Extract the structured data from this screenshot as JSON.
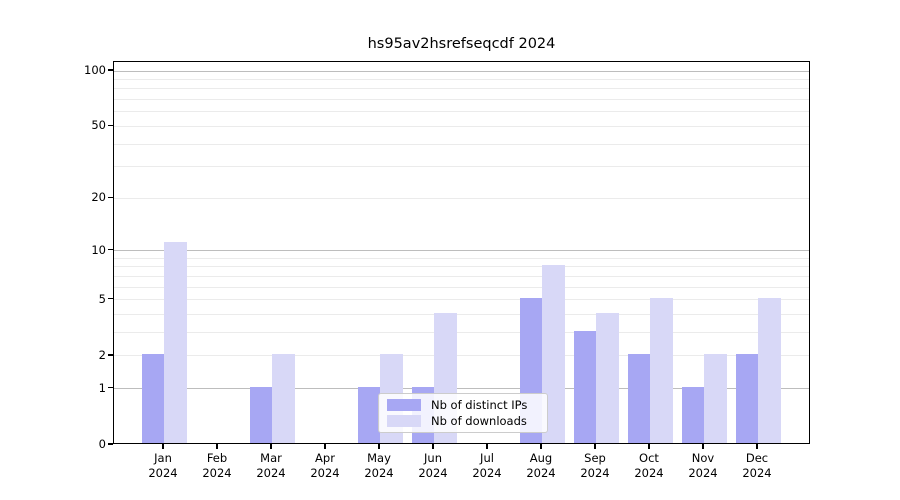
{
  "chart_data": {
    "type": "bar",
    "title": "hs95av2hsrefseqcdf 2024",
    "categories": [
      "Jan 2024",
      "Feb 2024",
      "Mar 2024",
      "Apr 2024",
      "May 2024",
      "Jun 2024",
      "Jul 2024",
      "Aug 2024",
      "Sep 2024",
      "Oct 2024",
      "Nov 2024",
      "Dec 2024"
    ],
    "series": [
      {
        "name": "Nb of distinct IPs",
        "color": "#a7a7f3",
        "values": [
          2,
          0,
          1,
          0,
          1,
          1,
          0,
          5,
          3,
          2,
          1,
          2
        ]
      },
      {
        "name": "Nb of downloads",
        "color": "#d8d8f7",
        "values": [
          11,
          0,
          2,
          0,
          2,
          4,
          0,
          8,
          4,
          5,
          2,
          5
        ]
      }
    ],
    "yscale": "log1p",
    "ylim": [
      0,
      112
    ],
    "yticks": [
      0,
      1,
      2,
      5,
      10,
      20,
      50,
      100
    ],
    "major_gridlines": [
      1,
      10,
      100
    ],
    "minor_gridlines": [
      2,
      3,
      4,
      5,
      6,
      7,
      8,
      9,
      20,
      30,
      40,
      50,
      60,
      70,
      80,
      90
    ],
    "grid": "on",
    "xlabel": "",
    "ylabel": "",
    "legend_position": "lower center",
    "colors": {
      "grid_major": "#bdbdbd",
      "grid_minor": "#ebebeb",
      "spine": "#000000",
      "text": "#000000",
      "background": "#ffffff"
    }
  }
}
